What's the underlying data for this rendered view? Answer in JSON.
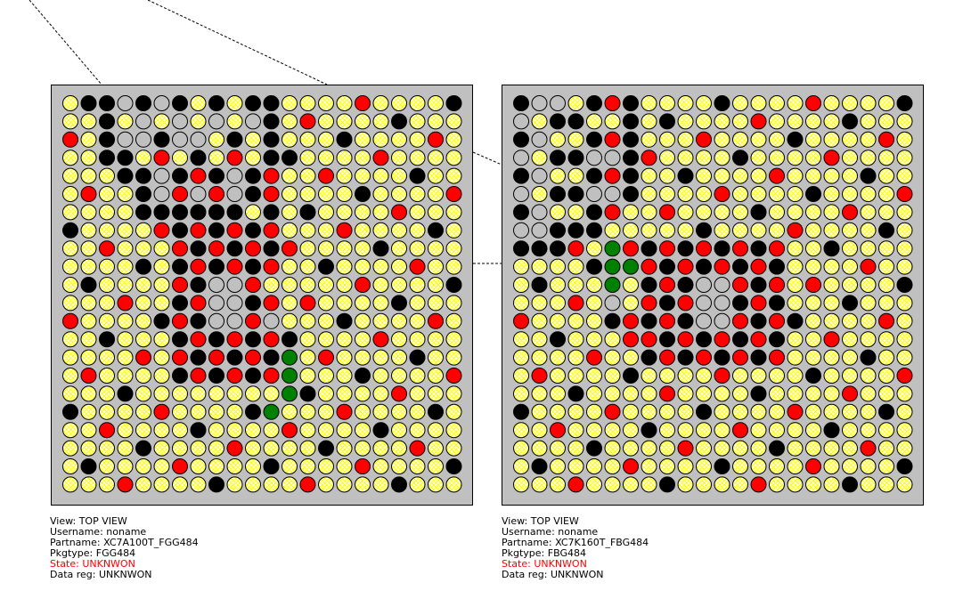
{
  "legend": {
    "Y": {
      "meaning": "unknown / hatched",
      "fill": "#ffffff",
      "hatch": "#ffff00"
    },
    "B": {
      "meaning": "black",
      "fill": "#000000"
    },
    "G": {
      "meaning": "gray",
      "fill": "#c0c0c0"
    },
    "R": {
      "meaning": "red",
      "fill": "#ff0000"
    },
    "N": {
      "meaning": "green",
      "fill": "#008000"
    }
  },
  "colors": {
    "package_bg": "#c0c0c0",
    "state_text": "#ff0000"
  },
  "devices": [
    {
      "info": {
        "view": "View: TOP VIEW",
        "username": "Username: noname",
        "partname": "Partname: XC7A100T_FGG484",
        "pkgtype": "Pkgtype: FGG484",
        "state": "State: UNKNWON",
        "data_reg": "Data reg: UNKNWON"
      },
      "balls": [
        "YBBGBGBYBYBBYYYYRYYYYB",
        "YYBYGYGYGYGBYRYYYYBYYY",
        "RYBGGBGGYBYBYYYBYYYYRY",
        "YYBBYRYBYRYBBYYYYRYYYY",
        "YYYBBGBRBGBRYYRYYYYBYY",
        "YRYYBGRGRGBRYYYYBYYYYR",
        "YYYYBBBBBBYBYBYYYYRYYY",
        "BYYYYRBRBRBRYYYRYYYYBY",
        "YYRYYYRBRBRBRYYYYBYYYY",
        "YYYYBYBRBRBRYYBYYYYRYY",
        "YBYYYYRBGGRYYYYYRYYYYB",
        "YYYRYYBRGGBRYRYYYYBYYY",
        "RYYYYBRBGGRGYYYBYYYYRY",
        "YYBYYYBRBRBRBYYYYRYYYY",
        "YYYYRYRBRBRBNYRYYYYBYY",
        "YRYYYYBRBRBRNYYYBYYYYR",
        "YYYBYYYYYYYYNBYYYYRYYY",
        "BYYYYRYYYYBNYYYRYYYYBY",
        "YYRYYYYBYYYYRYYYYBYYYY",
        "YYYYBYYYYRYYYYBYYYYRYY",
        "YBYYYYRYYYYBYYYYRYYYYB",
        "YYYRYYYYBYYYYRYYYYBYYY"
      ]
    },
    {
      "info": {
        "view": "View: TOP VIEW",
        "username": "Username: noname",
        "partname": "Partname: XC7K160T_FBG484",
        "pkgtype": "Pkgtype: FBG484",
        "state": "State: UNKNWON",
        "data_reg": "Data reg: UNKNWON"
      },
      "balls": [
        "BGGYBRBYYYYBYYYYRYYYYB",
        "GYBBYYBYBYYYYRYYYYBYYY",
        "BGYYBRBYYYRYYYYBYYYYRY",
        "GYBBGGBRYYYYBYYYYRYYYY",
        "BGYYBRBYYBYYYYRYYYYBYY",
        "GYBBGGBYYYYRYYYYBYYYYR",
        "BGYYBRYYRYYYYBYYYYRYYY",
        "GGBBBYYYYYBYYYYRYYYYBY",
        "BBBRYNRBRBRBRBRYYBYYYY",
        "YYYYBNNRBRBRBRBYYYYRYY",
        "YBYYYNYBRBGGRBRYRYYYYB",
        "YYYRYGYRBRGGBRBYYYBYYY",
        "RYYYYBRBRBGGRBRBYYYYRY",
        "YYBYYYRRBRBRBRBYYRYYYY",
        "YYYYRYYBRBRBRBRYYYYBYY",
        "YRYYYYBYYYYRYYYYBYYYYR",
        "YYYBYYYYRYYYYBYYYYRYYY",
        "BYYYYRYYYYBYYYYRYYYYBY",
        "YYRYYYYBYYYYRYYYYBYYYY",
        "YYYYBYYYYRYYYYBYYYYRYY",
        "YBYYYYRYYYYBYYYYRYYYYB",
        "YYYRYYYYBYYYYRYYYYBYYY"
      ]
    }
  ]
}
